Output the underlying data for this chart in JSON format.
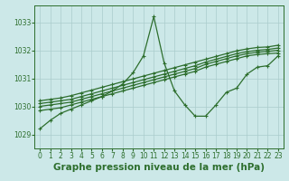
{
  "title": "Graphe pression niveau de la mer (hPa)",
  "background_color": "#cce8e8",
  "plot_bg_color": "#cce8e8",
  "grid_color": "#aacccc",
  "line_color": "#2d6e2d",
  "xlim": [
    -0.5,
    23.5
  ],
  "ylim": [
    1028.5,
    1033.6
  ],
  "yticks": [
    1029,
    1030,
    1031,
    1032,
    1033
  ],
  "xticks": [
    0,
    1,
    2,
    3,
    4,
    5,
    6,
    7,
    8,
    9,
    10,
    11,
    12,
    13,
    14,
    15,
    16,
    17,
    18,
    19,
    20,
    21,
    22,
    23
  ],
  "series": [
    [
      1029.2,
      1029.5,
      1029.75,
      1029.9,
      1030.05,
      1030.2,
      1030.35,
      1030.55,
      1030.8,
      1031.2,
      1031.8,
      1033.2,
      1031.55,
      1030.55,
      1030.05,
      1029.65,
      1029.65,
      1030.05,
      1030.5,
      1030.65,
      1031.15,
      1031.4,
      1031.45,
      1031.8
    ],
    [
      1029.85,
      1029.9,
      1029.95,
      1030.05,
      1030.15,
      1030.25,
      1030.35,
      1030.45,
      1030.55,
      1030.65,
      1030.75,
      1030.85,
      1030.95,
      1031.05,
      1031.15,
      1031.25,
      1031.4,
      1031.5,
      1031.6,
      1031.7,
      1031.8,
      1031.85,
      1031.88,
      1031.9
    ],
    [
      1030.0,
      1030.05,
      1030.1,
      1030.15,
      1030.25,
      1030.35,
      1030.45,
      1030.55,
      1030.65,
      1030.75,
      1030.85,
      1030.95,
      1031.05,
      1031.15,
      1031.25,
      1031.35,
      1031.5,
      1031.6,
      1031.7,
      1031.8,
      1031.88,
      1031.93,
      1031.96,
      1032.0
    ],
    [
      1030.1,
      1030.15,
      1030.2,
      1030.25,
      1030.35,
      1030.45,
      1030.55,
      1030.65,
      1030.75,
      1030.85,
      1030.95,
      1031.05,
      1031.15,
      1031.25,
      1031.35,
      1031.45,
      1031.58,
      1031.68,
      1031.78,
      1031.88,
      1031.95,
      1032.0,
      1032.03,
      1032.08
    ],
    [
      1030.2,
      1030.25,
      1030.3,
      1030.38,
      1030.48,
      1030.58,
      1030.68,
      1030.78,
      1030.88,
      1030.98,
      1031.08,
      1031.18,
      1031.28,
      1031.38,
      1031.48,
      1031.58,
      1031.68,
      1031.78,
      1031.88,
      1031.98,
      1032.05,
      1032.1,
      1032.12,
      1032.18
    ]
  ],
  "marker": "+",
  "marker_size": 3.5,
  "line_width": 0.9,
  "title_fontsize": 7.5,
  "tick_fontsize": 5.5
}
